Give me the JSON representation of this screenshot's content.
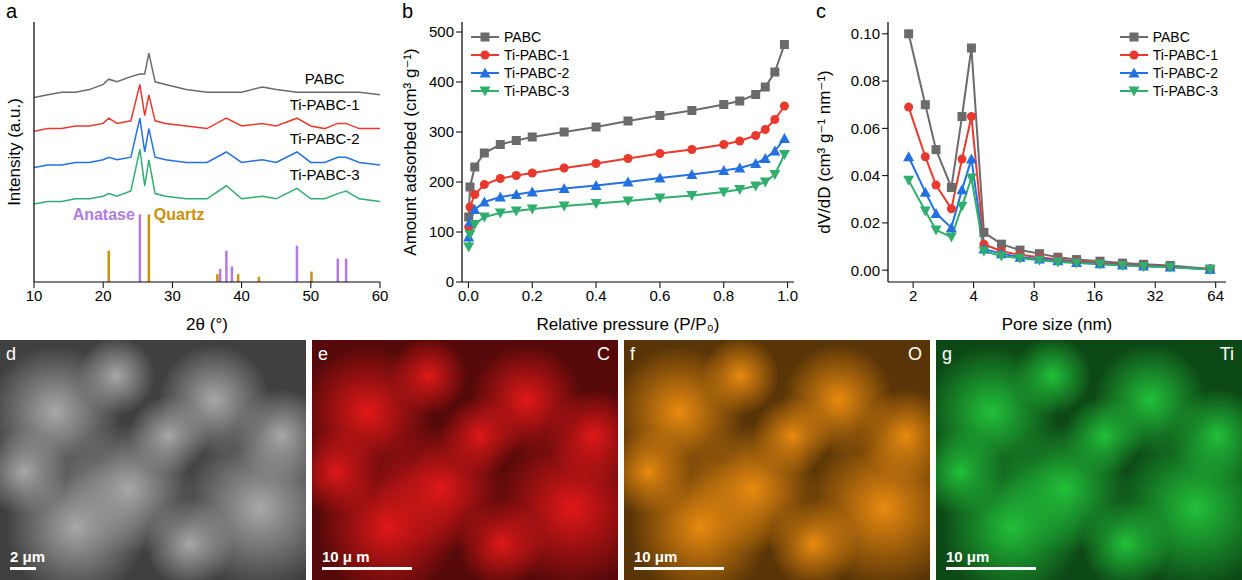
{
  "chart_data": [
    {
      "panel": "a",
      "type": "line",
      "x_label": "2θ (°)",
      "y_label": "Intensity (a.u.)",
      "x": [
        10,
        12,
        14,
        16,
        18,
        20,
        20.8,
        22,
        24,
        25.3,
        26,
        26.6,
        27.5,
        29,
        32,
        35,
        37.8,
        40,
        43,
        45,
        48,
        50,
        52,
        53.9,
        55.1,
        57,
        60
      ],
      "xlim": [
        10,
        60
      ],
      "xticks": [
        10,
        20,
        30,
        40,
        50,
        60
      ],
      "ylim": [
        0,
        100
      ],
      "tick_labels": "x",
      "grid": false,
      "series": [
        {
          "name": "PABC",
          "type": "line",
          "color": "#6b6b6b",
          "values": [
            71,
            72,
            73,
            73,
            74,
            76,
            78,
            77,
            79,
            80,
            80,
            88,
            77,
            76,
            74,
            73,
            73,
            73,
            75,
            74,
            73,
            73,
            73,
            73,
            73,
            73,
            72
          ]
        },
        {
          "name": "Ti-PABC-1",
          "type": "line",
          "color": "#e8392e",
          "values": [
            58,
            59,
            59,
            60,
            60,
            61,
            63,
            61,
            62,
            76,
            64,
            72,
            62,
            61,
            60,
            59,
            63,
            60,
            61,
            60,
            63,
            60,
            59,
            61,
            61,
            59,
            59
          ]
        },
        {
          "name": "Ti-PABC-2",
          "type": "line",
          "color": "#2371e0",
          "values": [
            44,
            45,
            45,
            46,
            46,
            47,
            48,
            47,
            48,
            63,
            50,
            59,
            48,
            47,
            46,
            46,
            50,
            46,
            47,
            46,
            50,
            46,
            46,
            48,
            48,
            46,
            45
          ]
        },
        {
          "name": "Ti-PABC-3",
          "type": "line",
          "color": "#2fae6e",
          "values": [
            30,
            31,
            31,
            32,
            32,
            33,
            34,
            33,
            35,
            51,
            37,
            47,
            34,
            33,
            32,
            32,
            37,
            32,
            33,
            32,
            36,
            32,
            32,
            34,
            35,
            32,
            31
          ]
        },
        {
          "name": "Anatase",
          "type": "stick",
          "color": "#b27ce0",
          "x": [
            25.3,
            36.9,
            37.8,
            38.6,
            48.0,
            53.9,
            55.1
          ],
          "values": [
            26,
            5,
            12,
            6,
            14,
            9,
            9
          ]
        },
        {
          "name": "Quartz",
          "type": "stick",
          "color": "#c9910c",
          "x": [
            20.8,
            26.6,
            36.5,
            39.5,
            42.5,
            50.1
          ],
          "values": [
            12,
            26,
            3,
            3,
            2,
            4
          ]
        }
      ]
    },
    {
      "panel": "b",
      "type": "line",
      "x_label": "Relative pressure (P/P₀)",
      "y_label": "Amount adsorbed (cm³ g⁻¹)",
      "x": [
        0.001,
        0.005,
        0.02,
        0.05,
        0.1,
        0.15,
        0.2,
        0.3,
        0.4,
        0.5,
        0.6,
        0.7,
        0.8,
        0.85,
        0.9,
        0.93,
        0.96,
        0.99
      ],
      "xlim": [
        -0.02,
        1.02
      ],
      "xticks": [
        {
          "value": 0,
          "label": "0.0"
        },
        {
          "value": 0.2,
          "label": "0.2"
        },
        {
          "value": 0.4,
          "label": "0.4"
        },
        {
          "value": 0.6,
          "label": "0.6"
        },
        {
          "value": 0.8,
          "label": "0.8"
        },
        {
          "value": 1,
          "label": "1.0"
        }
      ],
      "ylim": [
        0,
        520
      ],
      "yticks": [
        0,
        100,
        200,
        300,
        400,
        500
      ],
      "legend": "upper left",
      "grid": false,
      "series": [
        {
          "name": "PABC",
          "color": "#6b6b6b",
          "marker": "square",
          "values": [
            130,
            190,
            230,
            258,
            275,
            283,
            290,
            300,
            310,
            322,
            333,
            343,
            355,
            362,
            375,
            390,
            420,
            475
          ]
        },
        {
          "name": "Ti-PABC-1",
          "color": "#e8392e",
          "marker": "circle",
          "values": [
            110,
            150,
            175,
            195,
            207,
            213,
            218,
            228,
            237,
            247,
            257,
            265,
            275,
            282,
            293,
            305,
            325,
            352
          ]
        },
        {
          "name": "Ti-PABC-2",
          "color": "#2371e0",
          "marker": "triangle",
          "values": [
            90,
            120,
            145,
            160,
            170,
            175,
            180,
            187,
            193,
            200,
            208,
            215,
            223,
            228,
            237,
            247,
            262,
            287
          ]
        },
        {
          "name": "Ti-PABC-3",
          "color": "#2fae6e",
          "marker": "triangle-down",
          "values": [
            70,
            95,
            115,
            130,
            138,
            142,
            146,
            152,
            157,
            162,
            168,
            173,
            180,
            185,
            192,
            200,
            215,
            255
          ]
        }
      ]
    },
    {
      "panel": "c",
      "type": "line",
      "x_label": "Pore size (nm)",
      "y_label": "dV/dD (cm³ g⁻¹ nm⁻¹)",
      "log": "x",
      "x": [
        1.9,
        2.3,
        2.6,
        3.1,
        3.5,
        3.9,
        4.5,
        5.5,
        6.8,
        8.5,
        10.5,
        13,
        17,
        22,
        28,
        38,
        60
      ],
      "xlim": [
        1.5,
        72
      ],
      "xticks": [
        2,
        4,
        8,
        16,
        32,
        64
      ],
      "ylim": [
        -0.005,
        0.105
      ],
      "yticks": [
        {
          "value": 0,
          "label": "0.00"
        },
        {
          "value": 0.02,
          "label": "0.02"
        },
        {
          "value": 0.04,
          "label": "0.04"
        },
        {
          "value": 0.06,
          "label": "0.06"
        },
        {
          "value": 0.08,
          "label": "0.08"
        },
        {
          "value": 0.1,
          "label": "0.10"
        }
      ],
      "legend": "upper right",
      "grid": false,
      "series": [
        {
          "name": "PABC",
          "color": "#6b6b6b",
          "marker": "square",
          "values": [
            0.1,
            0.07,
            0.051,
            0.035,
            0.065,
            0.094,
            0.016,
            0.011,
            0.0085,
            0.007,
            0.0055,
            0.0045,
            0.0038,
            0.003,
            0.0025,
            0.002,
            0.0005
          ]
        },
        {
          "name": "Ti-PABC-1",
          "color": "#e8392e",
          "marker": "circle",
          "values": [
            0.069,
            0.048,
            0.036,
            0.026,
            0.047,
            0.065,
            0.011,
            0.008,
            0.0065,
            0.0055,
            0.0045,
            0.0038,
            0.003,
            0.0025,
            0.002,
            0.0015,
            0.0005
          ]
        },
        {
          "name": "Ti-PABC-2",
          "color": "#2371e0",
          "marker": "triangle",
          "values": [
            0.048,
            0.033,
            0.024,
            0.018,
            0.034,
            0.047,
            0.009,
            0.007,
            0.0055,
            0.0047,
            0.004,
            0.0033,
            0.0027,
            0.0022,
            0.0018,
            0.0013,
            0.0004
          ]
        },
        {
          "name": "Ti-PABC-3",
          "color": "#2fae6e",
          "marker": "triangle-down",
          "values": [
            0.038,
            0.025,
            0.017,
            0.014,
            0.027,
            0.039,
            0.008,
            0.006,
            0.005,
            0.0042,
            0.0035,
            0.003,
            0.0025,
            0.002,
            0.0016,
            0.0012,
            0.0003
          ]
        }
      ]
    }
  ],
  "images": [
    {
      "panel": "d",
      "scale_bar": "2 μm",
      "color": "#a8a8a8"
    },
    {
      "panel": "e",
      "element": "C",
      "scale_bar": "10 μ m",
      "color": "#e01818"
    },
    {
      "panel": "f",
      "element": "O",
      "scale_bar": "10 μm",
      "color": "#e88a10"
    },
    {
      "panel": "g",
      "element": "Ti",
      "scale_bar": "10 μm",
      "color": "#22c03a"
    }
  ]
}
